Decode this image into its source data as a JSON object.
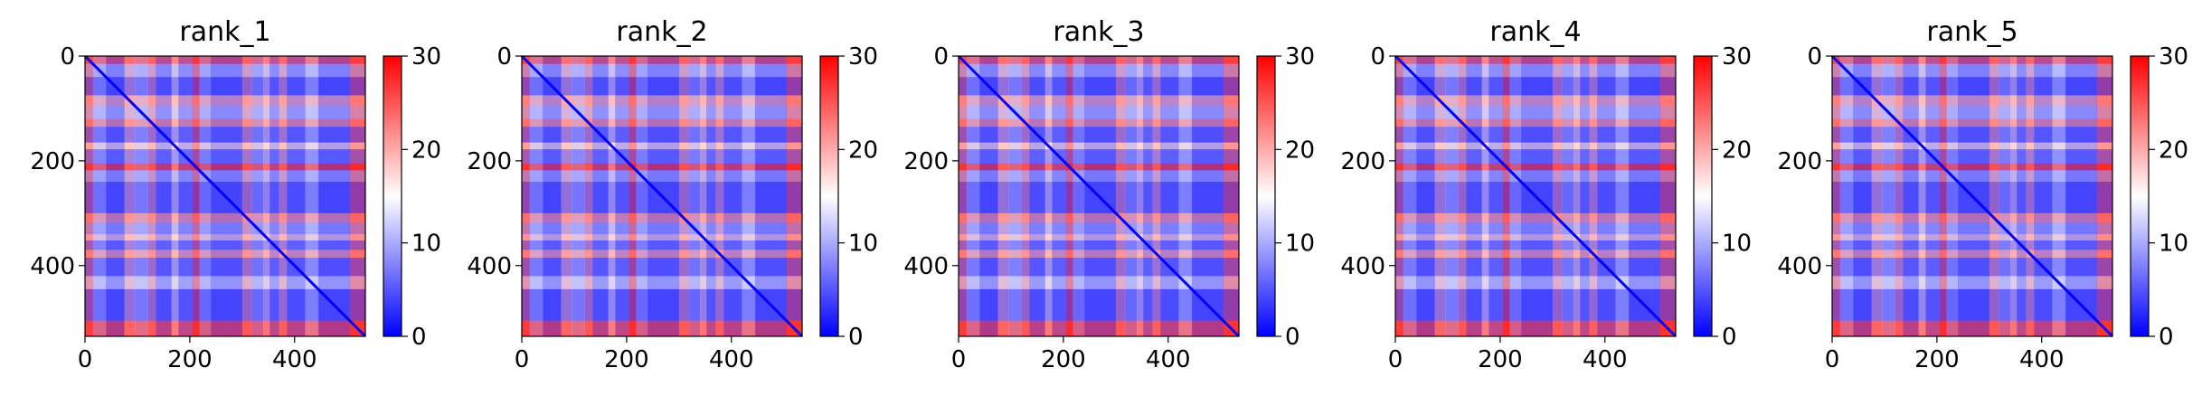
{
  "chart_data": {
    "type": "heatmap",
    "colormap": [
      "#0000ff",
      "#ffffff",
      "#ff0000"
    ],
    "colorbar": {
      "range": [
        0,
        30
      ],
      "ticks": [
        0,
        10,
        20,
        30
      ]
    },
    "axes": {
      "xticks": [
        0,
        200,
        400
      ],
      "yticks": [
        0,
        200,
        400
      ],
      "xlim": [
        0,
        535
      ],
      "ylim": [
        535,
        0
      ]
    },
    "panels": [
      {
        "title": "rank_1"
      },
      {
        "title": "rank_2"
      },
      {
        "title": "rank_3"
      },
      {
        "title": "rank_4"
      },
      {
        "title": "rank_5"
      }
    ],
    "bands": [
      {
        "start": 0,
        "end": 15,
        "value": 26
      },
      {
        "start": 15,
        "end": 40,
        "value": 10
      },
      {
        "start": 40,
        "end": 75,
        "value": 4
      },
      {
        "start": 75,
        "end": 95,
        "value": 20
      },
      {
        "start": 95,
        "end": 120,
        "value": 11
      },
      {
        "start": 120,
        "end": 135,
        "value": 22
      },
      {
        "start": 135,
        "end": 165,
        "value": 5
      },
      {
        "start": 165,
        "end": 178,
        "value": 17
      },
      {
        "start": 178,
        "end": 205,
        "value": 6
      },
      {
        "start": 205,
        "end": 218,
        "value": 28
      },
      {
        "start": 218,
        "end": 240,
        "value": 9
      },
      {
        "start": 240,
        "end": 300,
        "value": 4
      },
      {
        "start": 300,
        "end": 318,
        "value": 22
      },
      {
        "start": 318,
        "end": 340,
        "value": 9
      },
      {
        "start": 340,
        "end": 352,
        "value": 18
      },
      {
        "start": 352,
        "end": 370,
        "value": 6
      },
      {
        "start": 370,
        "end": 385,
        "value": 21
      },
      {
        "start": 385,
        "end": 420,
        "value": 5
      },
      {
        "start": 420,
        "end": 445,
        "value": 12
      },
      {
        "start": 445,
        "end": 505,
        "value": 4
      },
      {
        "start": 505,
        "end": 535,
        "value": 27
      }
    ]
  }
}
